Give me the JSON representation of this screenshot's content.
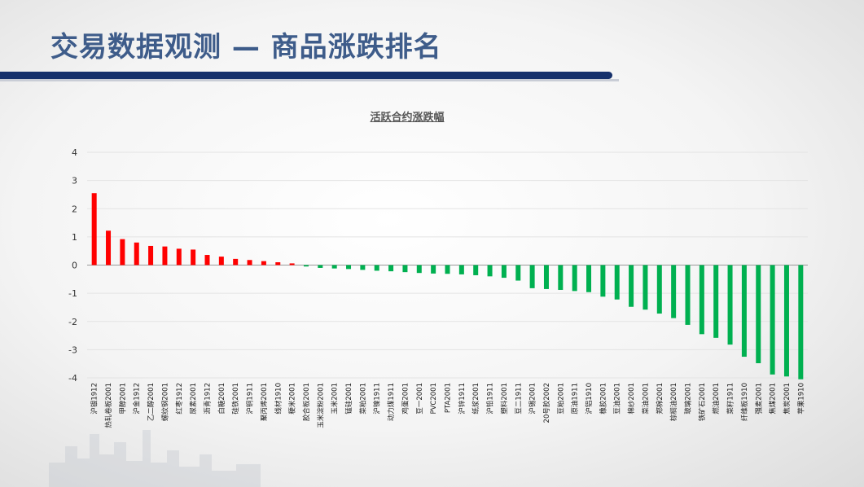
{
  "slide": {
    "title": "交易数据观测 — 商品涨跌排名"
  },
  "colors": {
    "title": "#3e5c8a",
    "title_bar": "#15306b",
    "positive": "#ff0000",
    "negative": "#00b050"
  },
  "chart_data": {
    "type": "bar",
    "title": "活跃合约涨跌幅",
    "xlabel": "",
    "ylabel": "",
    "ylim": [
      -4,
      4
    ],
    "yticks": [
      4,
      3,
      2,
      1,
      0,
      -1,
      -2,
      -3,
      -4
    ],
    "grid": true,
    "legend": "none",
    "categories": [
      "沪银1912",
      "热轧卷板2001",
      "甲醇2001",
      "沪金1912",
      "乙二醇2001",
      "螺纹钢2001",
      "红枣1912",
      "尿素2001",
      "沥青1912",
      "白糖2001",
      "硅铁2001",
      "沪铜1911",
      "聚丙烯2001",
      "线材1910",
      "粳米2001",
      "胶合板2001",
      "玉米淀粉2001",
      "玉米2001",
      "锰硅2001",
      "菜粕2001",
      "沪镍1911",
      "动力煤1911",
      "鸡蛋2001",
      "豆一2001",
      "PVC2001",
      "PTA2001",
      "沪锌1911",
      "纸浆2001",
      "沪铅1911",
      "塑料2001",
      "豆二1911",
      "沪锡2001",
      "20号胶2002",
      "豆粕2001",
      "原油1911",
      "沪铝1910",
      "橡胶2001",
      "豆油2001",
      "棉纱2001",
      "菜油2001",
      "郑棉2001",
      "棕榈油2001",
      "玻璃2001",
      "铁矿石2001",
      "燃油2001",
      "菜籽1911",
      "纤维板1910",
      "强麦2001",
      "焦煤2001",
      "焦炭2001",
      "苹果1910"
    ],
    "values": [
      2.55,
      1.22,
      0.92,
      0.8,
      0.68,
      0.66,
      0.58,
      0.55,
      0.36,
      0.3,
      0.22,
      0.18,
      0.14,
      0.1,
      0.06,
      -0.05,
      -0.1,
      -0.12,
      -0.14,
      -0.17,
      -0.2,
      -0.22,
      -0.25,
      -0.28,
      -0.3,
      -0.31,
      -0.33,
      -0.36,
      -0.4,
      -0.45,
      -0.55,
      -0.82,
      -0.85,
      -0.88,
      -0.92,
      -0.96,
      -1.12,
      -1.22,
      -1.48,
      -1.58,
      -1.72,
      -1.88,
      -2.12,
      -2.45,
      -2.58,
      -2.82,
      -3.25,
      -3.48,
      -3.88,
      -3.95,
      -4.05
    ]
  }
}
